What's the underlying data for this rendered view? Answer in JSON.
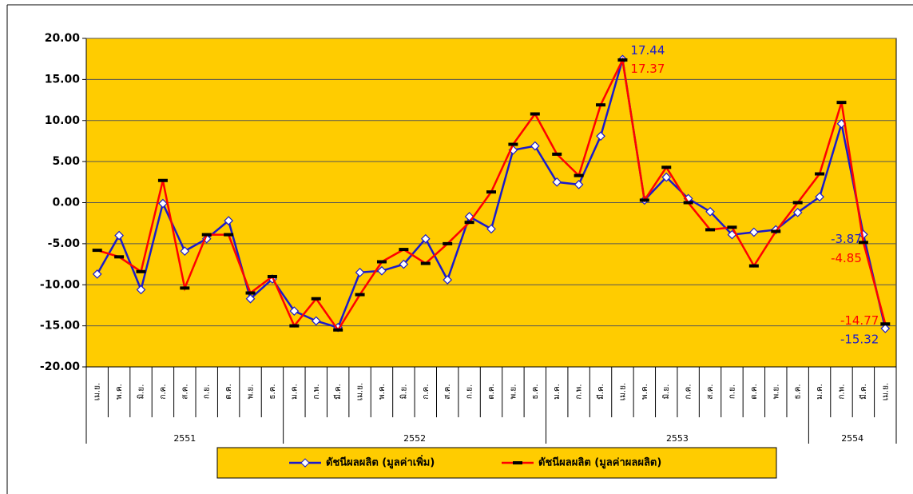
{
  "chart_data": {
    "type": "line",
    "categories": [
      "เม.ย.",
      "พ.ค.",
      "มิ.ย.",
      "ก.ค.",
      "ส.ค.",
      "ก.ย.",
      "ต.ค.",
      "พ.ย.",
      "ธ.ค.",
      "ม.ค.",
      "ก.พ.",
      "มี.ค.",
      "เม.ย.",
      "พ.ค.",
      "มิ.ย.",
      "ก.ค.",
      "ส.ค.",
      "ก.ย.",
      "ต.ค.",
      "พ.ย.",
      "ธ.ค.",
      "ม.ค.",
      "ก.พ.",
      "มี.ค.",
      "เม.ย.",
      "พ.ค.",
      "มิ.ย.",
      "ก.ค.",
      "ส.ค.",
      "ก.ย.",
      "ต.ค.",
      "พ.ย.",
      "ธ.ค.",
      "ม.ค.",
      "ก.พ.",
      "มี.ค.",
      "เม.ย."
    ],
    "years": [
      "2551",
      "2551",
      "2551",
      "2551",
      "2551",
      "2551",
      "2551",
      "2551",
      "2551",
      "2552",
      "2552",
      "2552",
      "2552",
      "2552",
      "2552",
      "2552",
      "2552",
      "2552",
      "2552",
      "2552",
      "2552",
      "2553",
      "2553",
      "2553",
      "2553",
      "2553",
      "2553",
      "2553",
      "2553",
      "2553",
      "2553",
      "2553",
      "2553",
      "2554",
      "2554",
      "2554",
      "2554"
    ],
    "series": [
      {
        "name": "ดัชนีผลผลิต (มูลค่าเพิ่ม)",
        "color": "#1a1acc",
        "marker": "diamond",
        "values": [
          -8.7,
          -4.0,
          -10.6,
          -0.1,
          -5.9,
          -4.4,
          -2.2,
          -11.7,
          -9.3,
          -13.2,
          -14.4,
          -15.2,
          -8.5,
          -8.3,
          -7.5,
          -4.4,
          -9.4,
          -1.7,
          -3.2,
          6.4,
          6.9,
          2.5,
          2.2,
          8.1,
          17.44,
          0.3,
          3.1,
          0.5,
          -1.1,
          -3.9,
          -3.6,
          -3.3,
          -1.2,
          0.7,
          9.6,
          -3.87,
          -15.32
        ],
        "value_labels": [
          null,
          null,
          null,
          null,
          null,
          null,
          null,
          null,
          null,
          null,
          null,
          null,
          null,
          null,
          null,
          null,
          null,
          null,
          null,
          null,
          null,
          null,
          null,
          null,
          "17.44",
          null,
          null,
          null,
          null,
          null,
          null,
          null,
          null,
          null,
          null,
          "-3.87",
          "-15.32"
        ]
      },
      {
        "name": "ดัชนีผลผลิต (มูลค่าผลผลิต)",
        "color": "#ff0000",
        "marker": "dash",
        "values": [
          -5.8,
          -6.6,
          -8.4,
          2.7,
          -10.4,
          -3.9,
          -3.9,
          -11.0,
          -9.0,
          -15.0,
          -11.7,
          -15.5,
          -11.2,
          -7.2,
          -5.7,
          -7.4,
          -5.0,
          -2.4,
          1.3,
          7.1,
          10.8,
          5.9,
          3.3,
          11.9,
          17.37,
          0.3,
          4.3,
          0.0,
          -3.3,
          -3.0,
          -7.7,
          -3.5,
          0.0,
          3.5,
          12.2,
          -4.85,
          -14.77
        ],
        "value_labels": [
          null,
          null,
          null,
          null,
          null,
          null,
          null,
          null,
          null,
          null,
          null,
          null,
          null,
          null,
          null,
          null,
          null,
          null,
          null,
          null,
          null,
          null,
          null,
          null,
          "17.37",
          null,
          null,
          null,
          null,
          null,
          null,
          null,
          null,
          null,
          null,
          "-4.85",
          "-14.77"
        ]
      }
    ],
    "ylim": [
      -20,
      20
    ],
    "yticks": [
      {
        "value": -20,
        "label": "-20.00"
      },
      {
        "value": -15,
        "label": "-15.00"
      },
      {
        "value": -10,
        "label": "-10.00"
      },
      {
        "value": -5,
        "label": "-5.00"
      },
      {
        "value": 0,
        "label": "0.00"
      },
      {
        "value": 5,
        "label": "5.00"
      },
      {
        "value": 10,
        "label": "10.00"
      },
      {
        "value": 15,
        "label": "15.00"
      },
      {
        "value": 20,
        "label": "20.00"
      }
    ],
    "grid": true,
    "plot_background": "#ffcc00",
    "legend": "bottom"
  }
}
